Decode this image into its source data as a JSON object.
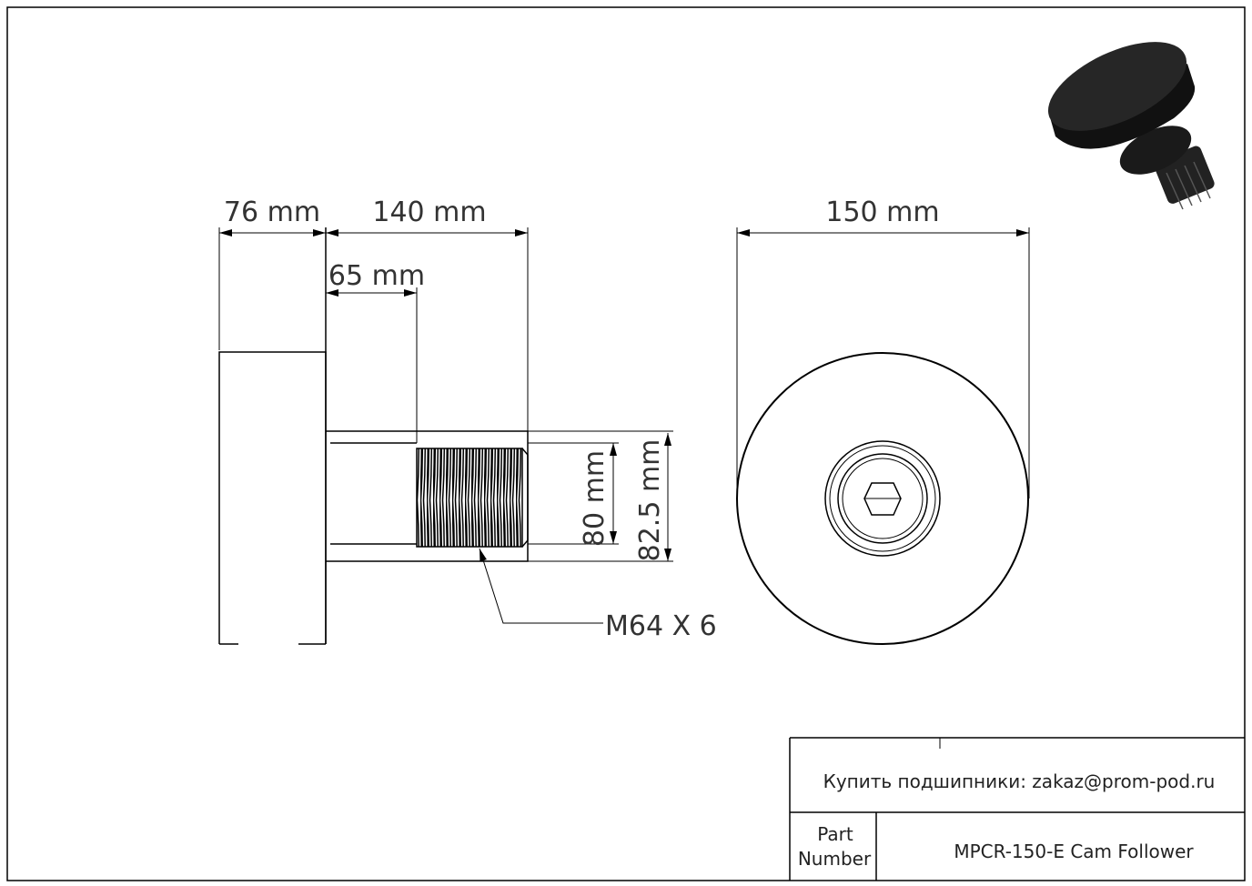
{
  "dimensions": {
    "flange_width": "76 mm",
    "total_length": "140 mm",
    "shaft_length": "65 mm",
    "outer_diameter": "150 mm",
    "thread_diameter": "80 mm",
    "stud_diameter": "82.5 mm",
    "thread_spec": "M64 X 6"
  },
  "title_block": {
    "contact": "Купить подшипники: zakaz@prom-pod.ru",
    "part_label_line1": "Part",
    "part_label_line2": "Number",
    "part_number": "MPCR-150-E Cam Follower"
  },
  "colors": {
    "line": "#000000",
    "part_fill": "#1a1a1a"
  }
}
